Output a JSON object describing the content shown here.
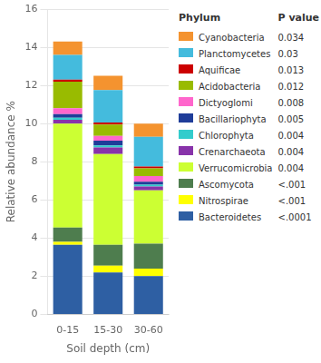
{
  "chart_data": {
    "type": "bar",
    "stacked": true,
    "xlabel": "Soil depth (cm)",
    "ylabel": "Relative abundance %",
    "categories": [
      "0-15",
      "15-30",
      "30-60"
    ],
    "ylim": [
      0,
      16
    ],
    "yticks": [
      0,
      2,
      4,
      6,
      8,
      10,
      12,
      14,
      16
    ],
    "grid": true,
    "legend": "right",
    "annotations": [
      "Phylum",
      "P value"
    ],
    "series": [
      {
        "name": "Bacteroidetes",
        "color": "#2E5FA3",
        "pvalue": "<.0001",
        "values": [
          3.65,
          2.2,
          2.0
        ]
      },
      {
        "name": "Nitrospirae",
        "color": "#FFFF00",
        "pvalue": "<.001",
        "values": [
          0.15,
          0.35,
          0.4
        ]
      },
      {
        "name": "Ascomycota",
        "color": "#4E7D4E",
        "pvalue": "<.001",
        "values": [
          0.75,
          1.1,
          1.3
        ]
      },
      {
        "name": "Verrucomicrobia",
        "color": "#CCFF33",
        "pvalue": "0.004",
        "values": [
          5.45,
          4.75,
          2.8
        ]
      },
      {
        "name": "Crenarchaeota",
        "color": "#8833AA",
        "pvalue": "0.004",
        "values": [
          0.2,
          0.35,
          0.2
        ]
      },
      {
        "name": "Chlorophyta",
        "color": "#33CCCC",
        "pvalue": "0.004",
        "values": [
          0.1,
          0.1,
          0.1
        ]
      },
      {
        "name": "Bacillariophyta",
        "color": "#1F3D99",
        "pvalue": "0.005",
        "values": [
          0.2,
          0.25,
          0.15
        ]
      },
      {
        "name": "Dictyoglomi",
        "color": "#FF66CC",
        "pvalue": "0.008",
        "values": [
          0.3,
          0.25,
          0.3
        ]
      },
      {
        "name": "Acidobacteria",
        "color": "#99BB00",
        "pvalue": "0.012",
        "values": [
          1.4,
          0.6,
          0.4
        ]
      },
      {
        "name": "Aquificae",
        "color": "#CC0000",
        "pvalue": "0.013",
        "values": [
          0.1,
          0.1,
          0.1
        ]
      },
      {
        "name": "Planctomycetes",
        "color": "#44BBDD",
        "pvalue": "0.03",
        "values": [
          1.3,
          1.7,
          1.55
        ]
      },
      {
        "name": "Cyanobacteria",
        "color": "#F4932F",
        "pvalue": "0.034",
        "values": [
          0.7,
          0.75,
          0.7
        ]
      }
    ]
  }
}
